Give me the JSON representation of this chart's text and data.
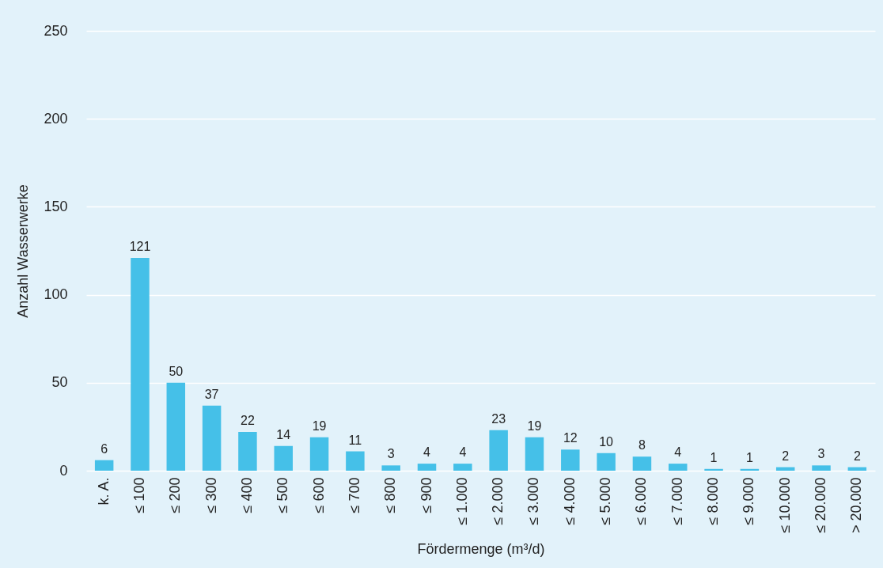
{
  "chart_data": {
    "type": "bar",
    "xlabel": "Fördermenge (m³/d)",
    "ylabel": "Anzahl Wasserwerke",
    "categories": [
      "k. A.",
      "≤ 100",
      "≤ 200",
      "≤ 300",
      "≤ 400",
      "≤ 500",
      "≤ 600",
      "≤ 700",
      "≤ 800",
      "≤ 900",
      "≤ 1.000",
      "≤ 2.000",
      "≤ 3.000",
      "≤ 4.000",
      "≤ 5.000",
      "≤ 6.000",
      "≤ 7.000",
      "≤ 8.000",
      "≤ 9.000",
      "≤ 10.000",
      "≤ 20.000",
      "> 20.000"
    ],
    "values": [
      6,
      121,
      50,
      37,
      22,
      14,
      19,
      11,
      3,
      4,
      4,
      23,
      19,
      12,
      10,
      8,
      4,
      1,
      1,
      2,
      3,
      2
    ],
    "color": "#45c0e8",
    "ylim": [
      0,
      250
    ],
    "yticks": [
      0,
      50,
      100,
      150,
      200,
      250
    ],
    "grid": "y",
    "data_labels": true
  }
}
